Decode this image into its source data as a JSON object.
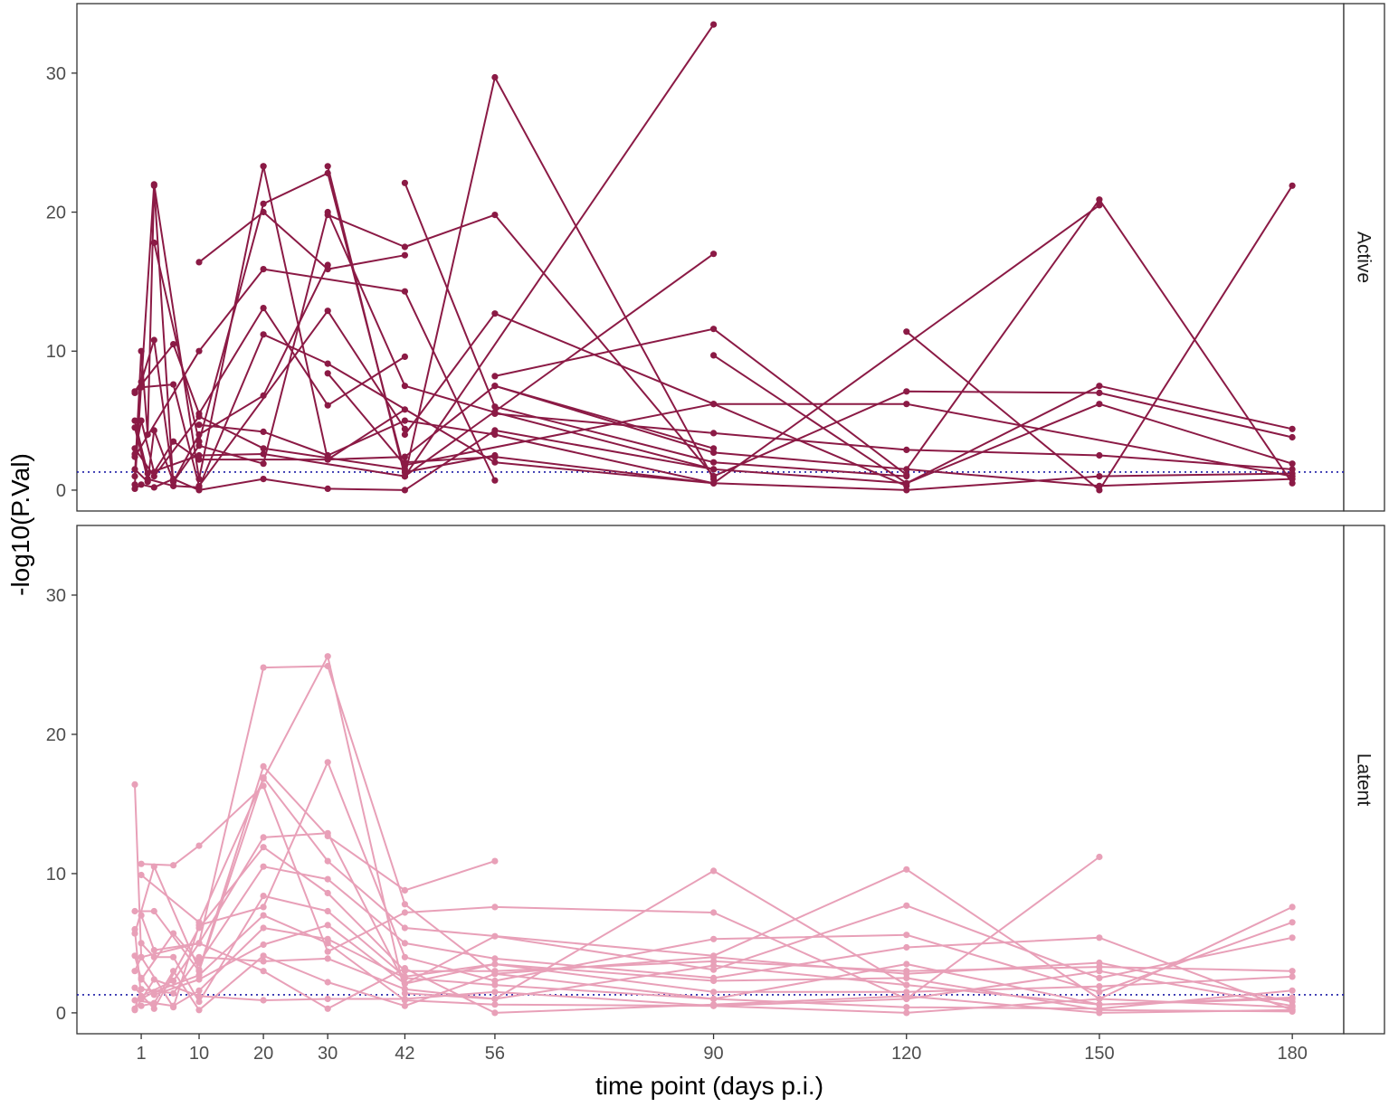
{
  "chart_data": {
    "type": "line",
    "title": "",
    "xlabel": "time point (days p.i.)",
    "ylabel": "-log10(P.Val)",
    "x_ticks": [
      1,
      10,
      20,
      30,
      42,
      56,
      90,
      120,
      150,
      180
    ],
    "xlim": [
      -9,
      188
    ],
    "ylim": [
      -1.5,
      35
    ],
    "y_ticks": [
      0,
      10,
      20,
      30
    ],
    "threshold": 1.3,
    "threshold_color": "#1a1aa6",
    "grid": false,
    "panels": [
      {
        "label": "Active",
        "color": "#8b1a45",
        "series": [
          {
            "x": [
              0,
              3,
              10,
              20
            ],
            "y": [
              0.4,
              22.0,
              0.8,
              23.3
            ]
          },
          {
            "x": [
              20,
              30,
              42,
              56,
              90
            ],
            "y": [
              23.3,
              2.2,
              2.4,
              7.5,
              3.0
            ]
          },
          {
            "x": [
              0,
              1,
              2,
              3,
              6
            ],
            "y": [
              1.0,
              10.0,
              4.0,
              21.9,
              0.3
            ]
          },
          {
            "x": [
              3,
              10,
              20,
              30,
              42,
              56
            ],
            "y": [
              17.8,
              3.5,
              20.6,
              22.8,
              1.3,
              2.5
            ]
          },
          {
            "x": [
              30,
              42,
              56,
              90
            ],
            "y": [
              23.3,
              1.0,
              29.7,
              0.8
            ]
          },
          {
            "x": [
              42,
              56,
              90,
              120
            ],
            "y": [
              22.1,
              6.0,
              2.0,
              1.0
            ]
          },
          {
            "x": [
              30,
              42,
              56,
              90
            ],
            "y": [
              19.8,
              17.5,
              19.8,
              1.0
            ]
          },
          {
            "x": [
              42,
              90
            ],
            "y": [
              1.0,
              33.5
            ]
          },
          {
            "x": [
              42,
              90
            ],
            "y": [
              1.0,
              17.0
            ]
          },
          {
            "x": [
              120,
              150,
              180
            ],
            "y": [
              1.5,
              20.9,
              0.5
            ]
          },
          {
            "x": [
              120,
              150,
              180
            ],
            "y": [
              11.4,
              0.0,
              21.9
            ]
          },
          {
            "x": [
              10,
              20,
              30,
              42
            ],
            "y": [
              16.4,
              20.0,
              15.9,
              16.9
            ]
          },
          {
            "x": [
              0,
              6,
              10,
              20,
              30,
              42
            ],
            "y": [
              7.0,
              10.5,
              5.5,
              13.1,
              6.1,
              9.6
            ]
          },
          {
            "x": [
              0,
              10,
              20,
              42,
              56
            ],
            "y": [
              2.4,
              10.0,
              15.9,
              14.3,
              0.7
            ]
          },
          {
            "x": [
              1,
              6,
              10,
              30,
              42
            ],
            "y": [
              7.4,
              7.6,
              0.3,
              12.9,
              4.4
            ]
          },
          {
            "x": [
              42,
              56,
              90,
              120
            ],
            "y": [
              4.0,
              12.7,
              6.2,
              0.3
            ]
          },
          {
            "x": [
              56,
              90,
              120
            ],
            "y": [
              8.2,
              11.6,
              1.1
            ]
          },
          {
            "x": [
              90,
              120,
              150,
              180
            ],
            "y": [
              9.7,
              0.5,
              7.5,
              4.4
            ]
          },
          {
            "x": [
              90,
              120,
              150,
              180
            ],
            "y": [
              1.0,
              7.1,
              7.0,
              3.8
            ]
          },
          {
            "x": [
              30,
              42,
              90,
              120,
              180
            ],
            "y": [
              8.4,
              1.8,
              6.2,
              6.2,
              1.0
            ]
          },
          {
            "x": [
              56,
              90,
              120,
              150,
              180
            ],
            "y": [
              5.5,
              4.1,
              2.9,
              2.5,
              1.5
            ]
          },
          {
            "x": [
              0,
              1,
              3,
              6,
              10,
              20,
              30,
              42,
              56,
              90,
              120,
              150,
              180
            ],
            "y": [
              0.1,
              0.4,
              0.2,
              0.8,
              0.0,
              0.8,
              0.1,
              0.0,
              4.3,
              1.5,
              0.5,
              6.2,
              1.9
            ]
          },
          {
            "x": [
              10,
              20,
              30,
              42,
              56,
              90,
              120,
              150,
              180
            ],
            "y": [
              4.7,
              4.2,
              2.5,
              5.0,
              4.0,
              0.5,
              0.0,
              1.0,
              1.2
            ]
          },
          {
            "x": [
              0,
              2,
              6,
              10,
              20,
              30,
              56,
              90
            ],
            "y": [
              4.5,
              0.8,
              0.3,
              0.2,
              11.2,
              9.1,
              2.0,
              0.5
            ]
          },
          {
            "x": [
              0,
              2,
              3,
              6,
              10,
              20,
              30,
              42,
              56,
              90
            ],
            "y": [
              1.5,
              0.6,
              4.3,
              0.6,
              3.2,
              1.9,
              20.0,
              7.5,
              5.6,
              1.5
            ]
          },
          {
            "x": [
              0,
              3,
              10,
              20,
              42
            ],
            "y": [
              3.0,
              1.0,
              5.3,
              3.0,
              1.5
            ]
          },
          {
            "x": [
              0,
              1,
              3,
              6,
              10,
              20,
              30
            ],
            "y": [
              7.1,
              7.8,
              10.8,
              0.6,
              4.0,
              6.8,
              16.2
            ]
          },
          {
            "x": [
              0,
              1,
              3,
              6,
              10,
              30,
              42
            ],
            "y": [
              2.6,
              5.0,
              1.3,
              3.5,
              2.2,
              2.2,
              5.8
            ]
          },
          {
            "x": [
              56,
              90,
              150,
              180
            ],
            "y": [
              7.5,
              2.7,
              0.3,
              0.8
            ]
          },
          {
            "x": [
              42,
              56,
              90,
              150
            ],
            "y": [
              2.0,
              2.4,
              0.5,
              20.5
            ]
          },
          {
            "x": [
              0,
              2,
              10,
              20,
              42
            ],
            "y": [
              5.0,
              1.2,
              2.5,
              2.6,
              1.0
            ]
          }
        ]
      },
      {
        "label": "Latent",
        "color": "#e8a0b8",
        "series": [
          {
            "x": [
              0,
              1,
              10,
              20,
              30,
              42,
              56,
              90,
              120,
              150,
              180
            ],
            "y": [
              16.4,
              4.0,
              5.0,
              24.8,
              24.9,
              7.8,
              2.8,
              4.0,
              2.8,
              3.6,
              0.8
            ]
          },
          {
            "x": [
              1,
              10,
              20,
              30,
              42,
              56,
              90,
              120
            ],
            "y": [
              9.9,
              6.5,
              16.8,
              25.6,
              1.4,
              1.0,
              10.2,
              2.0
            ]
          },
          {
            "x": [
              0,
              3,
              10,
              20,
              30,
              42,
              56
            ],
            "y": [
              5.7,
              10.5,
              3.1,
              17.7,
              12.7,
              8.8,
              10.9
            ]
          },
          {
            "x": [
              1,
              6,
              10,
              20,
              30,
              42,
              56,
              90,
              120,
              150
            ],
            "y": [
              10.7,
              10.6,
              12.0,
              16.3,
              4.4,
              7.2,
              7.6,
              7.2,
              1.0,
              11.2
            ]
          },
          {
            "x": [
              0,
              3,
              10,
              20,
              30,
              42,
              90,
              120,
              150,
              180
            ],
            "y": [
              7.3,
              7.3,
              3.0,
              16.9,
              10.9,
              6.1,
              4.1,
              10.3,
              1.0,
              7.6
            ]
          },
          {
            "x": [
              0,
              1,
              6,
              10,
              20,
              30,
              42,
              56,
              90,
              120,
              150,
              180
            ],
            "y": [
              3.0,
              4.0,
              0.4,
              6.3,
              7.6,
              18.0,
              4.0,
              2.3,
              5.3,
              5.6,
              1.5,
              6.5
            ]
          },
          {
            "x": [
              1,
              3,
              10,
              20,
              30,
              42,
              56,
              90,
              120,
              150,
              180
            ],
            "y": [
              7.0,
              4.5,
              5.0,
              12.6,
              12.9,
              2.1,
              5.5,
              3.1,
              7.7,
              2.5,
              5.4
            ]
          },
          {
            "x": [
              0,
              1,
              6,
              10,
              20,
              30,
              42,
              56,
              90,
              120,
              150,
              180
            ],
            "y": [
              4.1,
              2.4,
              5.7,
              3.6,
              10.5,
              9.6,
              5.0,
              3.9,
              2.5,
              4.7,
              5.4,
              0.2
            ]
          },
          {
            "x": [
              0,
              3,
              10,
              20,
              30,
              42,
              56,
              90,
              120,
              150,
              180
            ],
            "y": [
              1.8,
              0.3,
              6.1,
              11.9,
              8.6,
              3.0,
              3.0,
              3.7,
              3.0,
              3.3,
              3.0
            ]
          },
          {
            "x": [
              1,
              3,
              6,
              10,
              20,
              30,
              42,
              56,
              90,
              120,
              150,
              180
            ],
            "y": [
              5.0,
              4.0,
              4.0,
              0.8,
              8.4,
              7.3,
              2.6,
              3.5,
              1.5,
              1.5,
              1.9,
              2.6
            ]
          },
          {
            "x": [
              0,
              6,
              10,
              20,
              30,
              42,
              56,
              90,
              120,
              150,
              180
            ],
            "y": [
              0.9,
              0.5,
              1.6,
              6.1,
              5.3,
              2.5,
              2.0,
              1.0,
              3.5,
              0.6,
              1.0
            ]
          },
          {
            "x": [
              1,
              3,
              10,
              20,
              30,
              42,
              56,
              90,
              120,
              150,
              180
            ],
            "y": [
              2.5,
              1.3,
              2.4,
              4.9,
              6.3,
              2.1,
              3.5,
              2.3,
              2.5,
              0.2,
              0.1
            ]
          },
          {
            "x": [
              0,
              1,
              6,
              10,
              20,
              30,
              42,
              56,
              90,
              120,
              150,
              180
            ],
            "y": [
              0.3,
              1.7,
              1.4,
              4.0,
              3.7,
              3.9,
              1.7,
              1.0,
              3.4,
              2.0,
              0.6,
              1.1
            ]
          },
          {
            "x": [
              1,
              3,
              6,
              10,
              20,
              30,
              42,
              56,
              90,
              120,
              150,
              180
            ],
            "y": [
              0.5,
              0.7,
              3.0,
              0.2,
              4.1,
              2.2,
              0.5,
              2.8,
              1.0,
              0.4,
              0.3,
              1.6
            ]
          },
          {
            "x": [
              0,
              3,
              10,
              20,
              30,
              42,
              56,
              90,
              120,
              150,
              180
            ],
            "y": [
              0.2,
              2.4,
              1.2,
              0.9,
              1.0,
              1.0,
              1.5,
              0.5,
              0.0,
              1.0,
              0.4
            ]
          },
          {
            "x": [
              1,
              6,
              10,
              20,
              30,
              42,
              56,
              90,
              120,
              150,
              180
            ],
            "y": [
              1.2,
              2.3,
              5.0,
              3.0,
              0.3,
              3.2,
              0.0,
              0.6,
              1.2,
              0.0,
              0.2
            ]
          },
          {
            "x": [
              0,
              1,
              3,
              10,
              20,
              30,
              42,
              56,
              90,
              120,
              150,
              180
            ],
            "y": [
              6.0,
              1.0,
              1.5,
              2.7,
              7.0,
              5.0,
              0.9,
              0.6,
              0.5,
              1.0,
              3.0,
              0.5
            ]
          }
        ]
      }
    ]
  }
}
